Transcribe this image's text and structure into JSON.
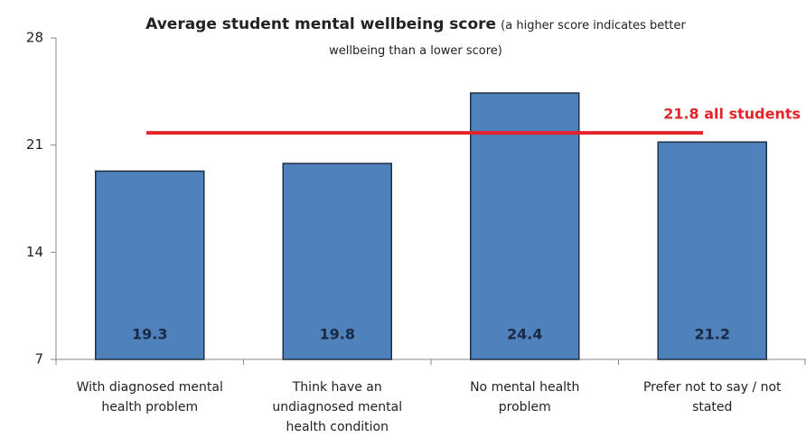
{
  "chart_data": {
    "type": "bar",
    "title": "Average student mental wellbeing score",
    "subtitle": "(a higher score indicates better wellbeing than a lower score)",
    "categories": [
      "With diagnosed mental health problem",
      "Think have an undiagnosed mental health condition",
      "No mental health problem",
      "Prefer not to say / not stated"
    ],
    "values": [
      19.3,
      19.8,
      24.4,
      21.2
    ],
    "color": "#4f81bd",
    "ylim": [
      7,
      28
    ],
    "yticks": [
      7,
      14,
      21,
      28
    ],
    "reference_line": {
      "value": 21.8,
      "label": "21.8 all students",
      "color": "#e3242b"
    }
  }
}
